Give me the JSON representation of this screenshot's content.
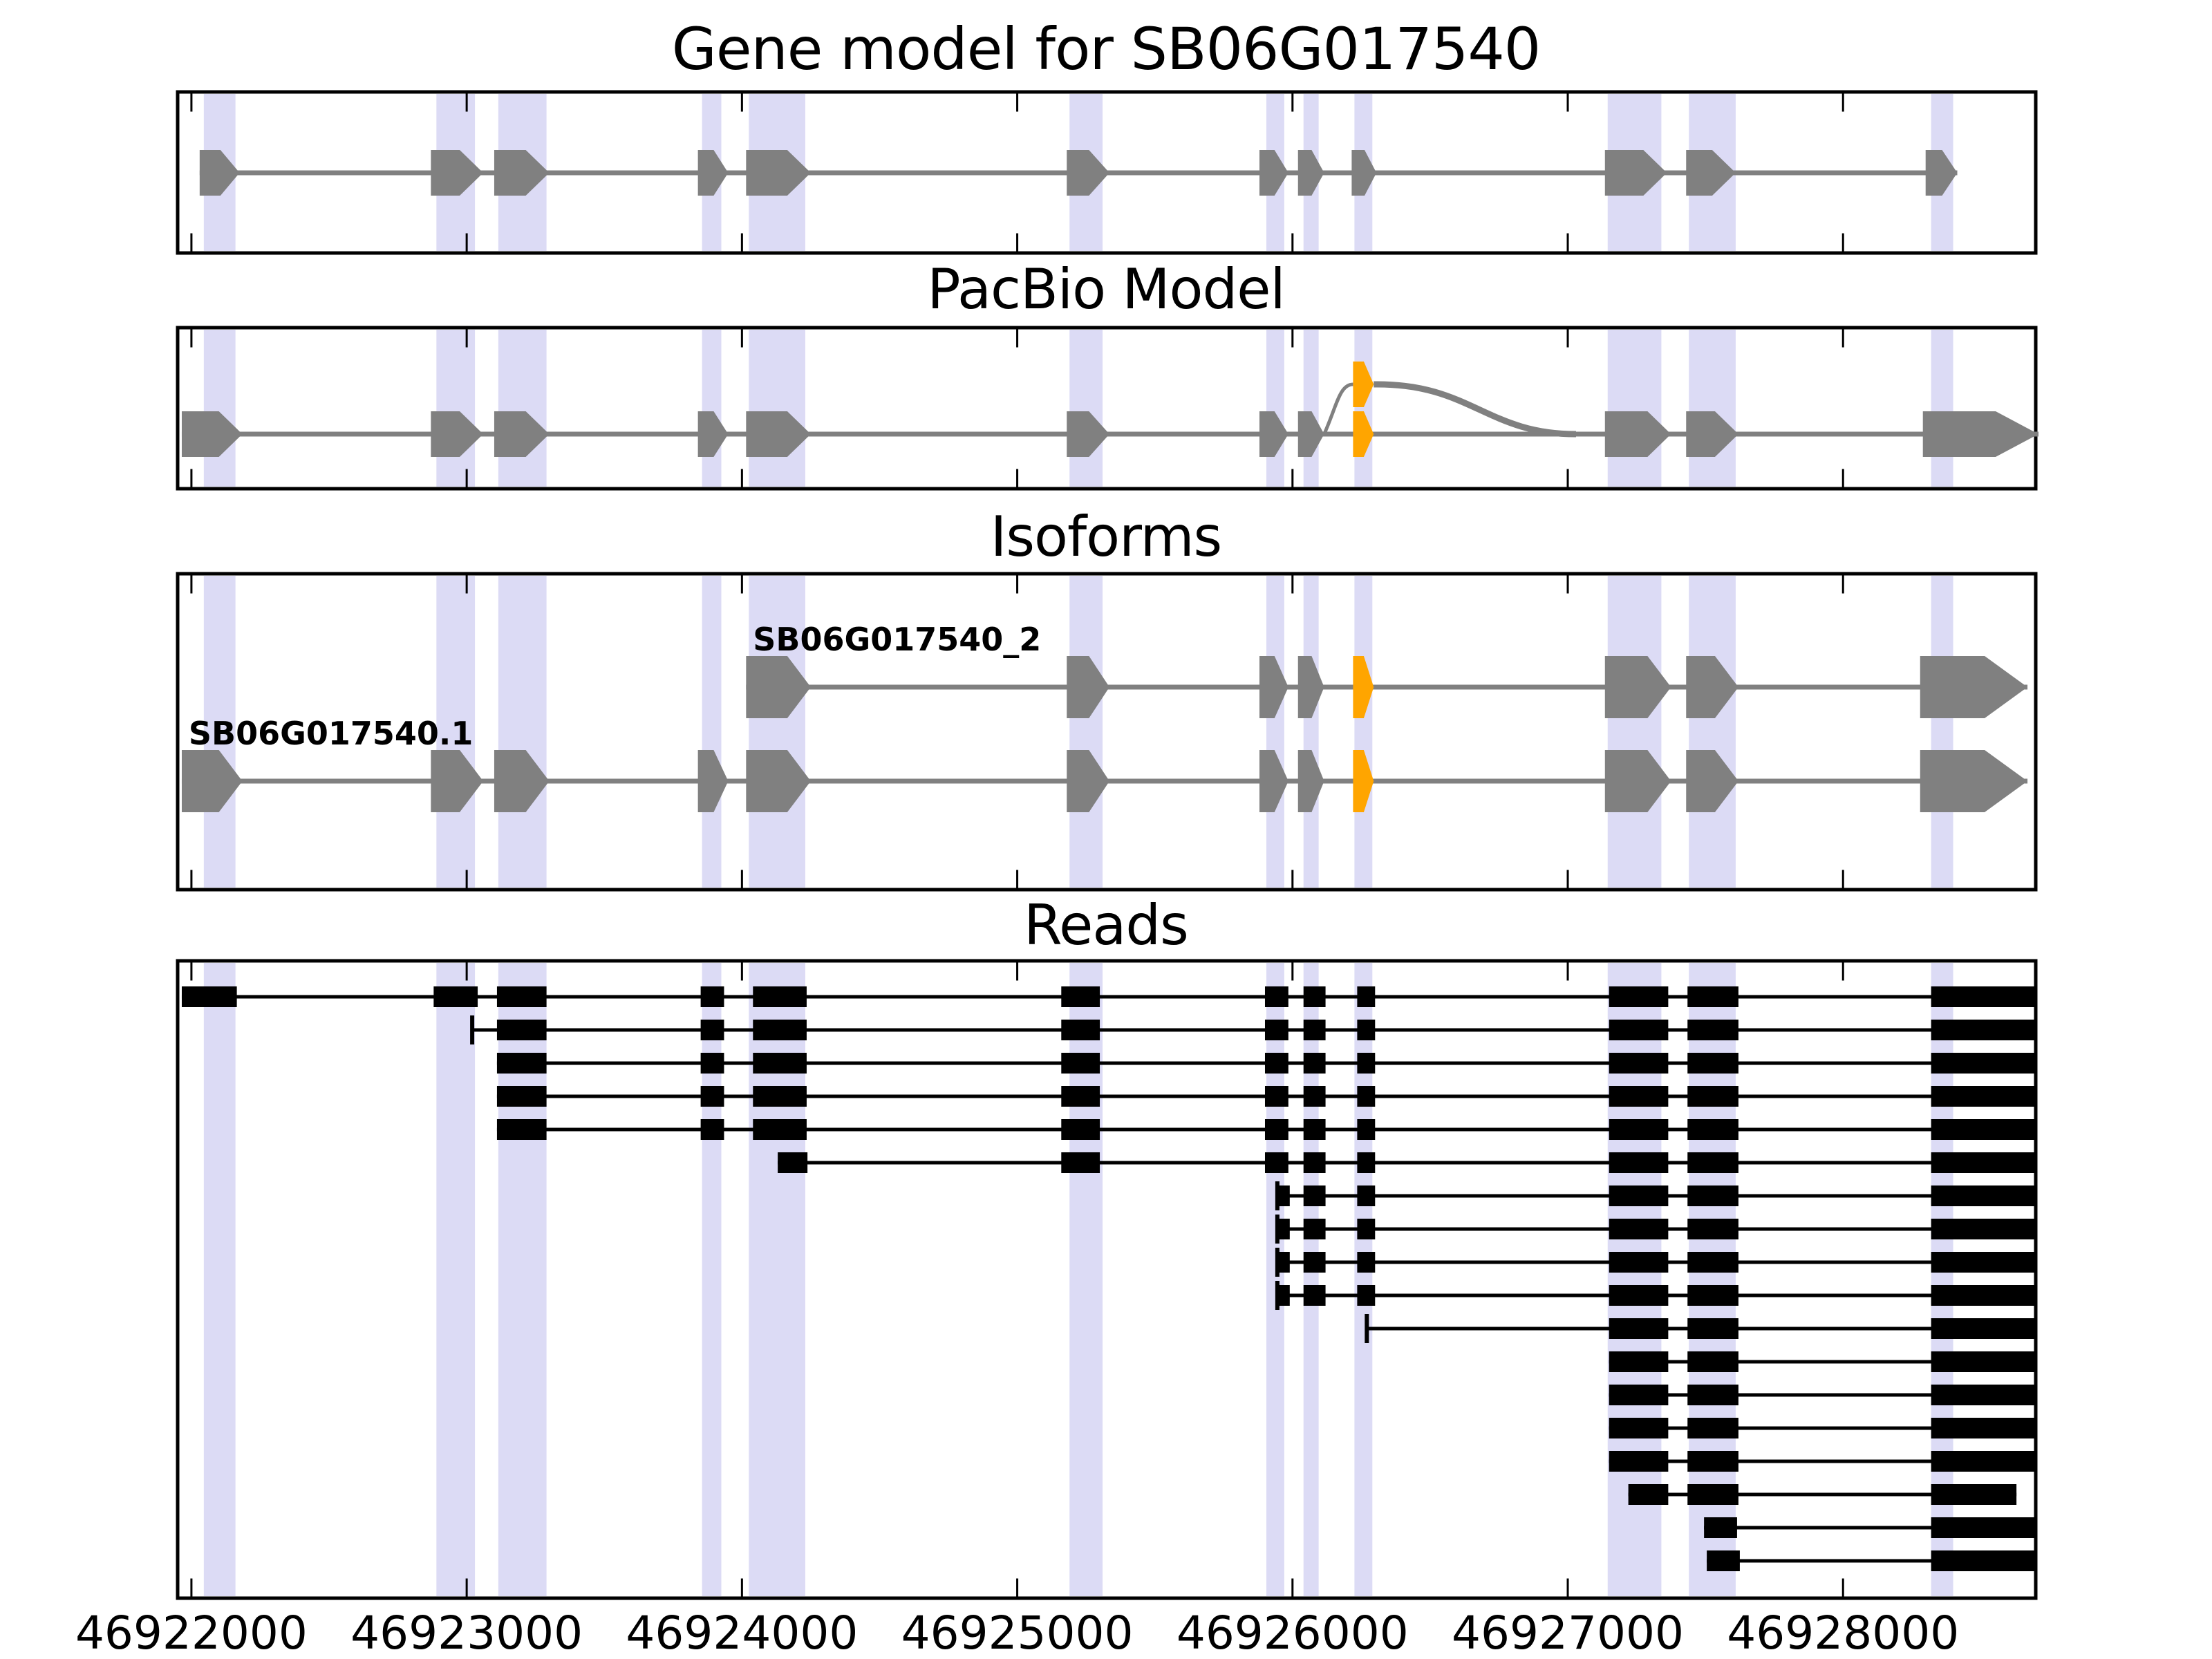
{
  "titles": {
    "gene_model": "Gene model for SB06G017540",
    "pacbio": "PacBio Model",
    "isoforms": "Isoforms",
    "reads": "Reads"
  },
  "colors": {
    "exon_gray": "#808080",
    "exon_orange": "#FFA500",
    "highlight_band": "#dcdbf5",
    "read_black": "#000000",
    "frame_black": "#000000",
    "background": "#ffffff"
  },
  "chart_data": {
    "type": "genome_browser_tracks",
    "title": "Gene model for SB06G017540",
    "axis": {
      "start": 46921950,
      "end": 46928700,
      "tick_values": [
        46922000,
        46923000,
        46924000,
        46925000,
        46926000,
        46927000,
        46928000
      ],
      "tick_labels": [
        "46922000",
        "46923000",
        "46924000",
        "46925000",
        "46926000",
        "46927000",
        "46928000"
      ],
      "grid": false
    },
    "highlight_bands": [
      [
        46922045,
        46922160
      ],
      [
        46922890,
        46923030
      ],
      [
        46923115,
        46923290
      ],
      [
        46923855,
        46923925
      ],
      [
        46924025,
        46924230
      ],
      [
        46925190,
        46925310
      ],
      [
        46925905,
        46925970
      ],
      [
        46926040,
        46926095
      ],
      [
        46926225,
        46926290
      ],
      [
        46927145,
        46927340
      ],
      [
        46927440,
        46927610
      ],
      [
        46928320,
        46928400
      ]
    ],
    "gene_model": {
      "title": "Gene model for SB06G017540",
      "line": [
        46922030,
        46928415
      ],
      "exons": [
        {
          "start": 46922030,
          "end": 46922175,
          "color": "gray"
        },
        {
          "start": 46922870,
          "end": 46923060,
          "color": "gray"
        },
        {
          "start": 46923100,
          "end": 46923300,
          "color": "gray"
        },
        {
          "start": 46923840,
          "end": 46923950,
          "color": "gray"
        },
        {
          "start": 46924015,
          "end": 46924250,
          "color": "gray"
        },
        {
          "start": 46925180,
          "end": 46925335,
          "color": "gray"
        },
        {
          "start": 46925880,
          "end": 46925985,
          "color": "gray"
        },
        {
          "start": 46926020,
          "end": 46926115,
          "color": "gray"
        },
        {
          "start": 46926215,
          "end": 46926305,
          "color": "gray"
        },
        {
          "start": 46927135,
          "end": 46927360,
          "color": "gray"
        },
        {
          "start": 46927430,
          "end": 46927610,
          "color": "gray"
        },
        {
          "start": 46928300,
          "end": 46928415,
          "color": "gray"
        }
      ]
    },
    "pacbio_model": {
      "title": "PacBio Model",
      "line": [
        46921965,
        46928710
      ],
      "exons": [
        {
          "start": 46921965,
          "end": 46922185,
          "color": "gray"
        },
        {
          "start": 46922870,
          "end": 46923060,
          "color": "gray"
        },
        {
          "start": 46923100,
          "end": 46923300,
          "color": "gray"
        },
        {
          "start": 46923840,
          "end": 46923950,
          "color": "gray"
        },
        {
          "start": 46924015,
          "end": 46924250,
          "color": "gray"
        },
        {
          "start": 46925180,
          "end": 46925335,
          "color": "gray"
        },
        {
          "start": 46925880,
          "end": 46925985,
          "color": "gray"
        },
        {
          "start": 46926020,
          "end": 46926115,
          "color": "gray"
        },
        {
          "start": 46926220,
          "end": 46926295,
          "color": "orange"
        },
        {
          "start": 46926220,
          "end": 46926295,
          "color": "orange",
          "elevated": true
        },
        {
          "start": 46927135,
          "end": 46927375,
          "color": "gray"
        },
        {
          "start": 46927430,
          "end": 46927620,
          "color": "gray"
        },
        {
          "start": 46928290,
          "end": 46928710,
          "color": "gray",
          "big_tip": true
        }
      ],
      "splice_arcs": [
        {
          "from": 46926115,
          "to": 46926220,
          "kind": "rise"
        },
        {
          "from": 46926295,
          "to": 46927030,
          "kind": "fall"
        }
      ]
    },
    "isoforms": {
      "title": "Isoforms",
      "tracks": [
        {
          "label": "SB06G017540_2",
          "label_anchor": 46924040,
          "line": [
            46924015,
            46928670
          ],
          "exons": [
            {
              "start": 46924015,
              "end": 46924250,
              "color": "gray"
            },
            {
              "start": 46925180,
              "end": 46925335,
              "color": "gray"
            },
            {
              "start": 46925880,
              "end": 46925985,
              "color": "gray"
            },
            {
              "start": 46926020,
              "end": 46926115,
              "color": "gray"
            },
            {
              "start": 46926220,
              "end": 46926295,
              "color": "orange"
            },
            {
              "start": 46927135,
              "end": 46927375,
              "color": "gray"
            },
            {
              "start": 46927430,
              "end": 46927620,
              "color": "gray"
            },
            {
              "start": 46928280,
              "end": 46928670,
              "color": "gray",
              "big_tip": true
            }
          ]
        },
        {
          "label": "SB06G017540.1",
          "label_anchor": 46921990,
          "line": [
            46921965,
            46928670
          ],
          "exons": [
            {
              "start": 46921965,
              "end": 46922185,
              "color": "gray"
            },
            {
              "start": 46922870,
              "end": 46923060,
              "color": "gray"
            },
            {
              "start": 46923100,
              "end": 46923300,
              "color": "gray"
            },
            {
              "start": 46923840,
              "end": 46923950,
              "color": "gray"
            },
            {
              "start": 46924015,
              "end": 46924250,
              "color": "gray"
            },
            {
              "start": 46925180,
              "end": 46925335,
              "color": "gray"
            },
            {
              "start": 46925880,
              "end": 46925985,
              "color": "gray"
            },
            {
              "start": 46926020,
              "end": 46926115,
              "color": "gray"
            },
            {
              "start": 46926220,
              "end": 46926295,
              "color": "orange"
            },
            {
              "start": 46927135,
              "end": 46927375,
              "color": "gray"
            },
            {
              "start": 46927430,
              "end": 46927620,
              "color": "gray"
            },
            {
              "start": 46928280,
              "end": 46928670,
              "color": "gray",
              "big_tip": true
            }
          ]
        }
      ]
    },
    "reads": {
      "title": "Reads",
      "rows": [
        {
          "segments": [
            [
              46921965,
              46922165
            ],
            [
              46922880,
              46923040
            ],
            [
              46923110,
              46923290
            ],
            [
              46923850,
              46923935
            ],
            [
              46924040,
              46924235
            ],
            [
              46925160,
              46925300
            ],
            [
              46925900,
              46925985
            ],
            [
              46926040,
              46926120
            ],
            [
              46926235,
              46926300
            ],
            [
              46927150,
              46927365
            ],
            [
              46927435,
              46927620
            ],
            [
              46928320,
              46928700
            ]
          ]
        },
        {
          "start_tick": 46923020,
          "segments": [
            [
              46923110,
              46923290
            ],
            [
              46923850,
              46923935
            ],
            [
              46924040,
              46924235
            ],
            [
              46925160,
              46925300
            ],
            [
              46925900,
              46925985
            ],
            [
              46926040,
              46926120
            ],
            [
              46926235,
              46926300
            ],
            [
              46927150,
              46927365
            ],
            [
              46927435,
              46927620
            ],
            [
              46928320,
              46928700
            ]
          ]
        },
        {
          "segments": [
            [
              46923110,
              46923290
            ],
            [
              46923850,
              46923935
            ],
            [
              46924040,
              46924235
            ],
            [
              46925160,
              46925300
            ],
            [
              46925900,
              46925985
            ],
            [
              46926040,
              46926120
            ],
            [
              46926235,
              46926300
            ],
            [
              46927150,
              46927365
            ],
            [
              46927435,
              46927620
            ],
            [
              46928320,
              46928700
            ]
          ]
        },
        {
          "segments": [
            [
              46923110,
              46923290
            ],
            [
              46923850,
              46923935
            ],
            [
              46924040,
              46924235
            ],
            [
              46925160,
              46925300
            ],
            [
              46925900,
              46925985
            ],
            [
              46926040,
              46926120
            ],
            [
              46926235,
              46926300
            ],
            [
              46927150,
              46927365
            ],
            [
              46927435,
              46927620
            ],
            [
              46928320,
              46928700
            ]
          ]
        },
        {
          "segments": [
            [
              46923110,
              46923290
            ],
            [
              46923850,
              46923935
            ],
            [
              46924040,
              46924235
            ],
            [
              46925160,
              46925300
            ],
            [
              46925900,
              46925985
            ],
            [
              46926040,
              46926120
            ],
            [
              46926235,
              46926300
            ],
            [
              46927150,
              46927365
            ],
            [
              46927435,
              46927620
            ],
            [
              46928320,
              46928700
            ]
          ]
        },
        {
          "segments": [
            [
              46924130,
              46924238
            ],
            [
              46925160,
              46925300
            ],
            [
              46925900,
              46925985
            ],
            [
              46926040,
              46926120
            ],
            [
              46926235,
              46926300
            ],
            [
              46927150,
              46927365
            ],
            [
              46927435,
              46927620
            ],
            [
              46928320,
              46928700
            ]
          ]
        },
        {
          "start_tick": 46925945,
          "segments": [
            [
              46925945,
              46925990
            ],
            [
              46926040,
              46926120
            ],
            [
              46926235,
              46926300
            ],
            [
              46927150,
              46927365
            ],
            [
              46927435,
              46927620
            ],
            [
              46928320,
              46928700
            ]
          ]
        },
        {
          "start_tick": 46925945,
          "segments": [
            [
              46925945,
              46925990
            ],
            [
              46926040,
              46926120
            ],
            [
              46926235,
              46926300
            ],
            [
              46927150,
              46927365
            ],
            [
              46927435,
              46927620
            ],
            [
              46928320,
              46928700
            ]
          ]
        },
        {
          "start_tick": 46925945,
          "segments": [
            [
              46925945,
              46925990
            ],
            [
              46926040,
              46926120
            ],
            [
              46926235,
              46926300
            ],
            [
              46927150,
              46927365
            ],
            [
              46927435,
              46927620
            ],
            [
              46928320,
              46928700
            ]
          ]
        },
        {
          "start_tick": 46925945,
          "segments": [
            [
              46925945,
              46925990
            ],
            [
              46926040,
              46926120
            ],
            [
              46926235,
              46926300
            ],
            [
              46927150,
              46927365
            ],
            [
              46927435,
              46927620
            ],
            [
              46928320,
              46928700
            ]
          ]
        },
        {
          "start_tick": 46926270,
          "segments": [
            [
              46927150,
              46927365
            ],
            [
              46927435,
              46927620
            ],
            [
              46928320,
              46928700
            ]
          ]
        },
        {
          "segments": [
            [
              46927150,
              46927365
            ],
            [
              46927435,
              46927620
            ],
            [
              46928320,
              46928700
            ]
          ]
        },
        {
          "segments": [
            [
              46927150,
              46927365
            ],
            [
              46927435,
              46927620
            ],
            [
              46928320,
              46928700
            ]
          ]
        },
        {
          "segments": [
            [
              46927150,
              46927365
            ],
            [
              46927435,
              46927620
            ],
            [
              46928320,
              46928700
            ]
          ]
        },
        {
          "segments": [
            [
              46927150,
              46927365
            ],
            [
              46927435,
              46927620
            ],
            [
              46928320,
              46928700
            ]
          ]
        },
        {
          "segments": [
            [
              46927220,
              46927365
            ],
            [
              46927435,
              46927620
            ],
            [
              46928320,
              46928630
            ]
          ]
        },
        {
          "segments": [
            [
              46927495,
              46927615
            ],
            [
              46928320,
              46928700
            ]
          ]
        },
        {
          "segments": [
            [
              46927505,
              46927625
            ],
            [
              46928320,
              46928700
            ]
          ]
        }
      ]
    }
  }
}
